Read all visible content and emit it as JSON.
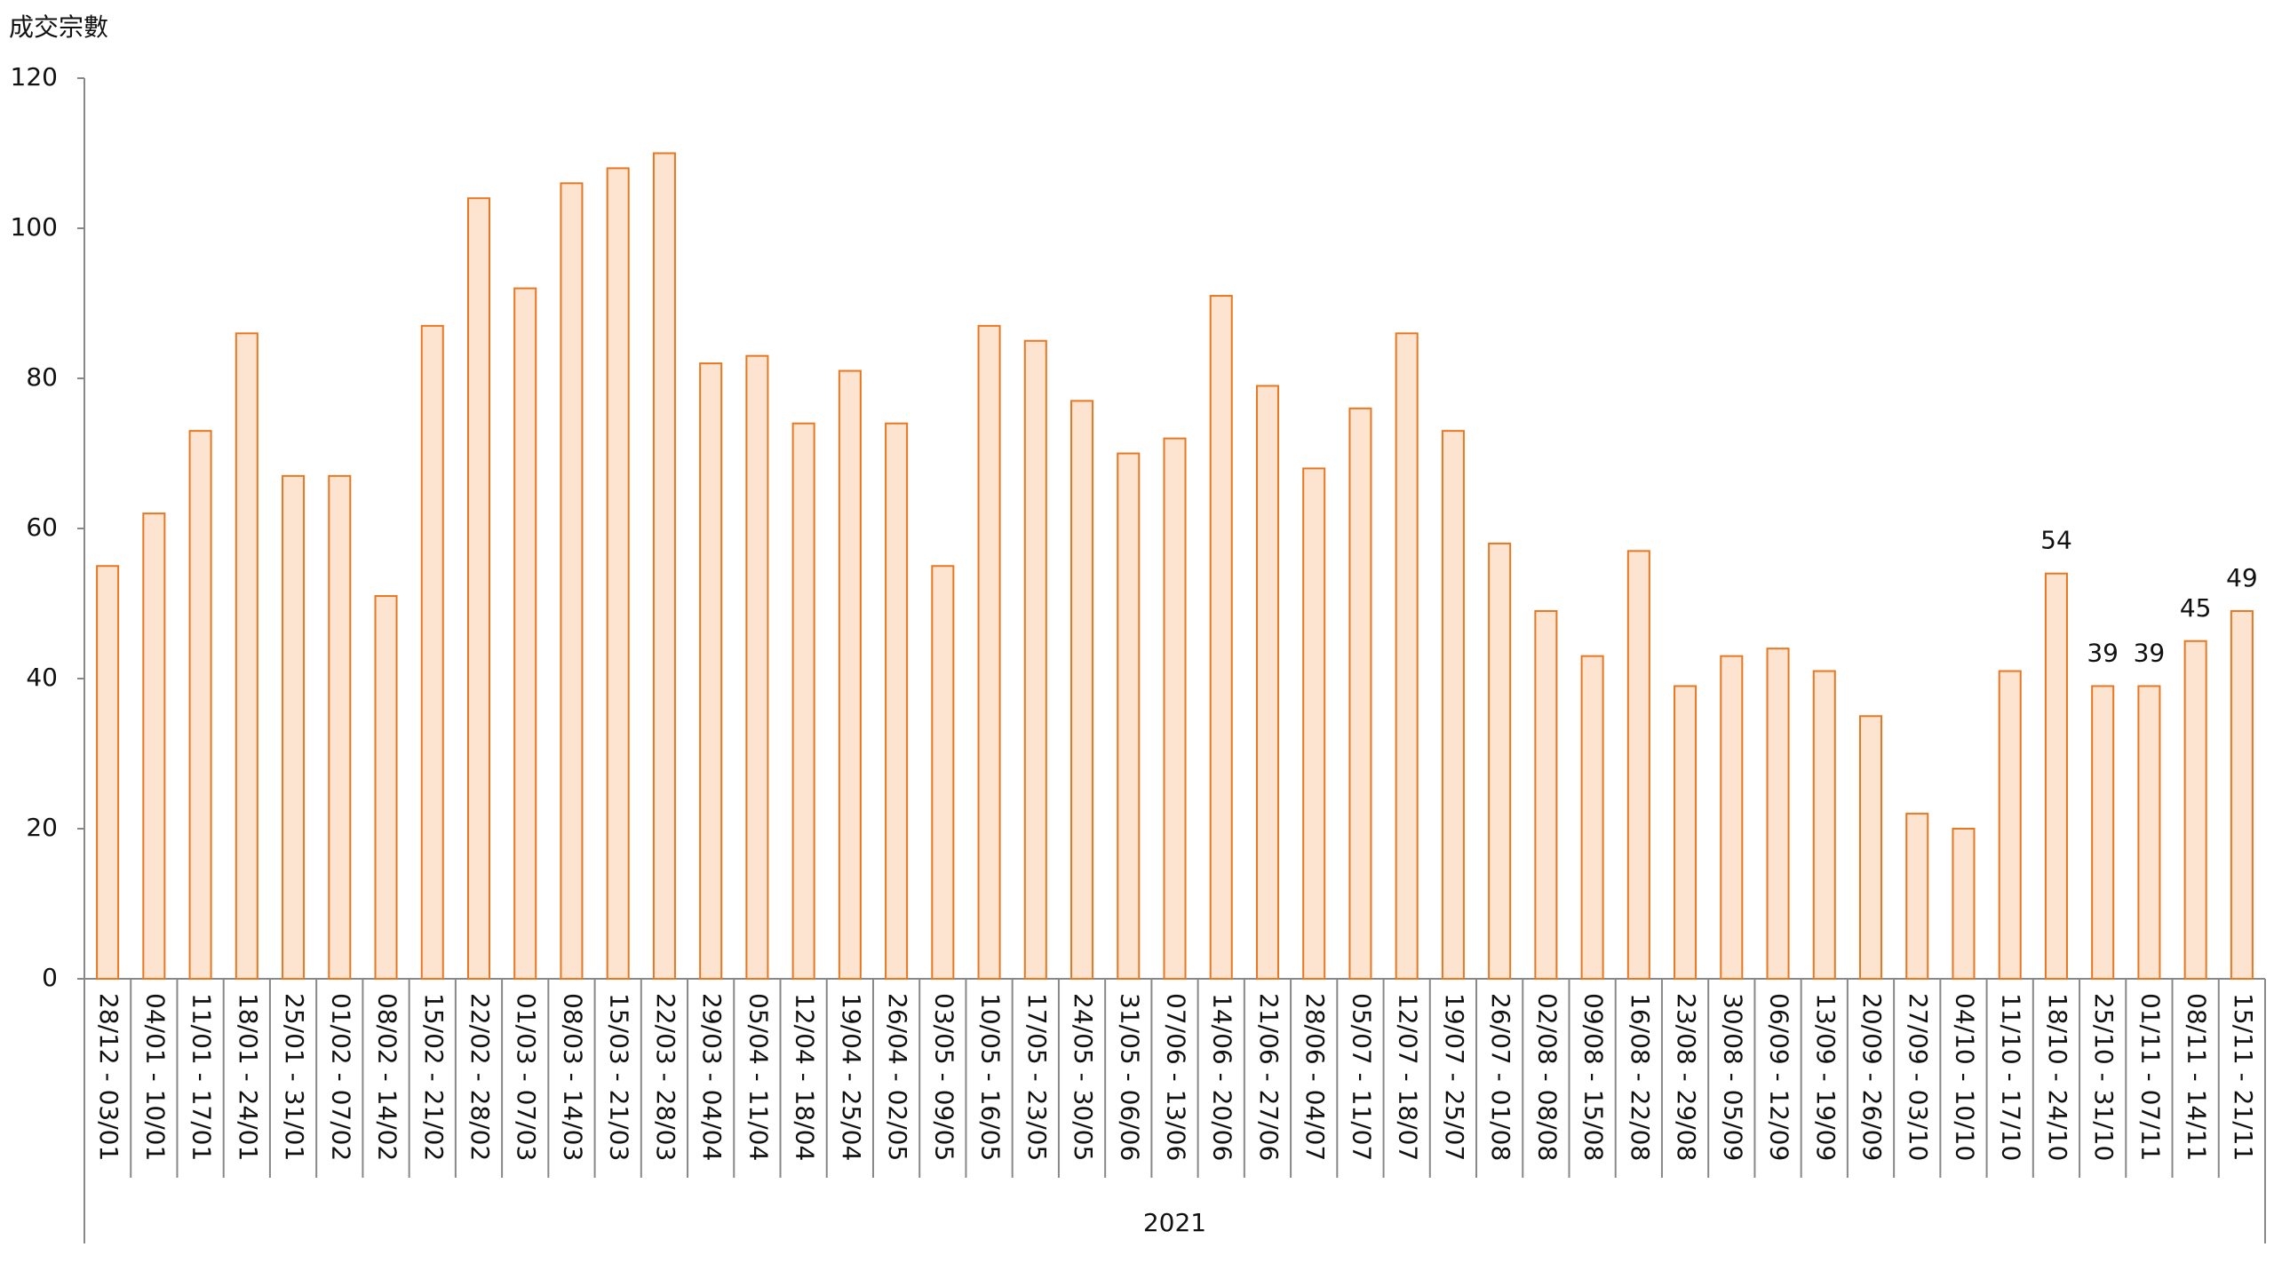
{
  "chart_data": {
    "type": "bar",
    "y_axis_label": "成交宗數",
    "group_label": "2021",
    "categories": [
      "28/12 - 03/01",
      "04/01 - 10/01",
      "11/01 - 17/01",
      "18/01 - 24/01",
      "25/01 - 31/01",
      "01/02 - 07/02",
      "08/02 - 14/02",
      "15/02 - 21/02",
      "22/02 - 28/02",
      "01/03 - 07/03",
      "08/03 - 14/03",
      "15/03 - 21/03",
      "22/03 - 28/03",
      "29/03 - 04/04",
      "05/04 - 11/04",
      "12/04 - 18/04",
      "19/04 - 25/04",
      "26/04 - 02/05",
      "03/05 - 09/05",
      "10/05 - 16/05",
      "17/05 - 23/05",
      "24/05 - 30/05",
      "31/05 - 06/06",
      "07/06 - 13/06",
      "14/06 - 20/06",
      "21/06 - 27/06",
      "28/06 - 04/07",
      "05/07 - 11/07",
      "12/07 - 18/07",
      "19/07 - 25/07",
      "26/07 - 01/08",
      "02/08 - 08/08",
      "09/08 - 15/08",
      "16/08 - 22/08",
      "23/08 - 29/08",
      "30/08 - 05/09",
      "06/09 - 12/09",
      "13/09 - 19/09",
      "20/09 - 26/09",
      "27/09 - 03/10",
      "04/10 - 10/10",
      "11/10 - 17/10",
      "18/10 - 24/10",
      "25/10 - 31/10",
      "01/11 - 07/11",
      "08/11 - 14/11",
      "15/11 - 21/11"
    ],
    "values": [
      55,
      62,
      73,
      86,
      67,
      67,
      51,
      87,
      104,
      92,
      106,
      108,
      110,
      82,
      83,
      74,
      81,
      74,
      55,
      87,
      85,
      77,
      70,
      72,
      91,
      79,
      68,
      76,
      86,
      73,
      58,
      49,
      43,
      57,
      39,
      43,
      44,
      41,
      35,
      22,
      20,
      41,
      54,
      39,
      39,
      45,
      49
    ],
    "value_labels": [
      null,
      null,
      null,
      null,
      null,
      null,
      null,
      null,
      null,
      null,
      null,
      null,
      null,
      null,
      null,
      null,
      null,
      null,
      null,
      null,
      null,
      null,
      null,
      null,
      null,
      null,
      null,
      null,
      null,
      null,
      null,
      null,
      null,
      null,
      null,
      null,
      null,
      null,
      null,
      null,
      null,
      null,
      "54",
      "39",
      "39",
      "45",
      "49"
    ],
    "color": "#fde4d0",
    "edge_color": "#e87722",
    "ylim": [
      0,
      120
    ],
    "yticks": [
      0,
      20,
      40,
      60,
      80,
      100,
      120
    ]
  }
}
